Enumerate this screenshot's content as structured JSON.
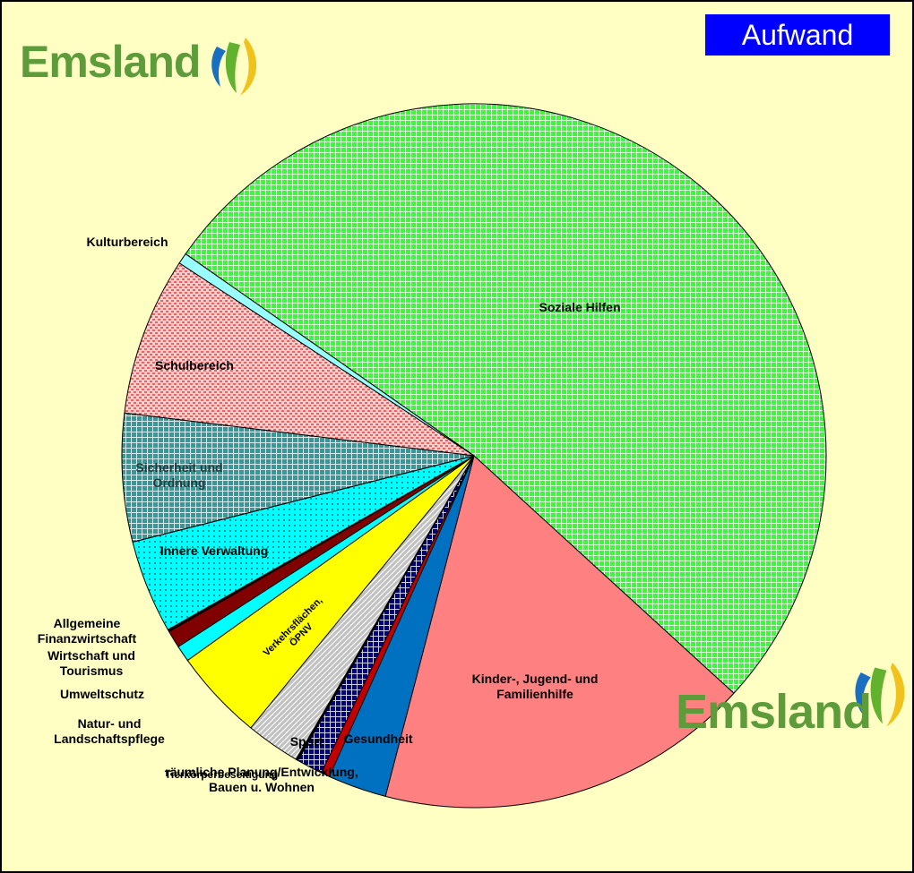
{
  "title": "Aufwand",
  "logo_top": "Emsland",
  "logo_bottom": "Emsland",
  "chart_data": {
    "type": "pie",
    "categories": [
      "Soziale Hilfen",
      "Kinder-, Jugend- und Familienhilfe",
      "Gesundheit",
      "räumliche Planung/Entwicklung, Bauen u. Wohnen",
      "Sport",
      "Tierkörperbeseitigung",
      "Natur- und Landschaftspflege",
      "Verkehrsflächen, ÖPNV",
      "Umweltschutz",
      "Wirtschaft und Tourismus",
      "Allgemeine Finanzwirtschaft",
      "Innere Verwaltung",
      "Sicherheit und Ordnung",
      "Schulbereich",
      "Kulturbereich"
    ],
    "values": [
      52.2,
      17.3,
      2.7,
      0.4,
      1.2,
      0.1,
      2.5,
      4.2,
      0.75,
      0.8,
      0.1,
      4.3,
      5.9,
      7.3,
      0.5
    ],
    "colors": [
      "#33ff33",
      "#ff8080",
      "#0070c0",
      "#c00000",
      "#000080",
      "#000000",
      "#c0c0c0",
      "#ffff00",
      "#00ffff",
      "#800000",
      "#000000",
      "#00ffff",
      "#339999",
      "#ffcccc",
      "#99ffff"
    ]
  }
}
